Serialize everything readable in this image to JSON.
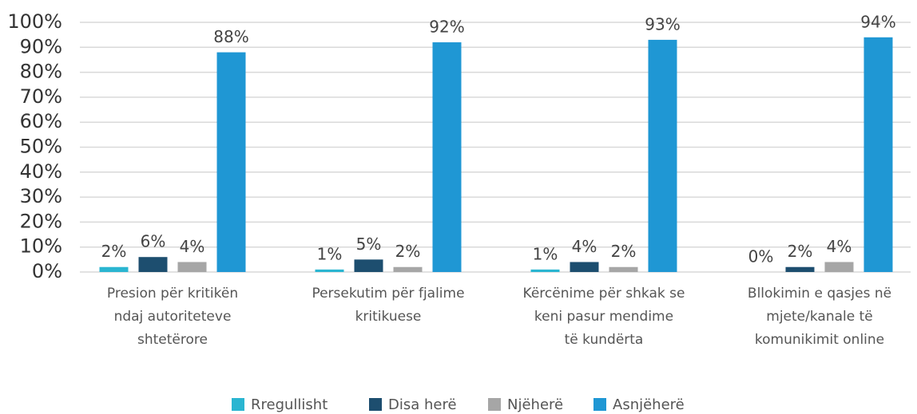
{
  "chart_data": {
    "type": "bar",
    "categories": [
      [
        "Presion për kritikën",
        "ndaj autoriteteve",
        "shtetërore"
      ],
      [
        "Persekutim për fjalime",
        "kritikuese"
      ],
      [
        "Kërcënime për shkak se",
        "keni pasur mendime",
        "të kundërta"
      ],
      [
        "Bllokimin e qasjes në",
        "mjete/kanale të",
        "komunikimit online"
      ]
    ],
    "series": [
      {
        "name": "Rregullisht",
        "color": "#2ab5d1",
        "values": [
          2,
          1,
          1,
          0
        ],
        "value_labels": [
          "2%",
          "1%",
          "1%",
          "0%"
        ]
      },
      {
        "name": "Disa herë",
        "color": "#1d4e6f",
        "values": [
          6,
          5,
          4,
          2
        ],
        "value_labels": [
          "6%",
          "5%",
          "4%",
          "2%"
        ]
      },
      {
        "name": "Njëherë",
        "color": "#a6a6a6",
        "values": [
          4,
          2,
          2,
          4
        ],
        "value_labels": [
          "4%",
          "2%",
          "2%",
          "4%"
        ]
      },
      {
        "name": "Asnjëherë",
        "color": "#1f97d4",
        "values": [
          88,
          92,
          93,
          94
        ],
        "value_labels": [
          "88%",
          "92%",
          "93%",
          "94%"
        ]
      }
    ],
    "ylim": [
      0,
      100
    ],
    "yticks": [
      {
        "value": 0,
        "label": "0%"
      },
      {
        "value": 10,
        "label": "10%"
      },
      {
        "value": 20,
        "label": "20%"
      },
      {
        "value": 30,
        "label": "30%"
      },
      {
        "value": 40,
        "label": "40%"
      },
      {
        "value": 50,
        "label": "50%"
      },
      {
        "value": 60,
        "label": "60%"
      },
      {
        "value": 70,
        "label": "70%"
      },
      {
        "value": 80,
        "label": "80%"
      },
      {
        "value": 90,
        "label": "90%"
      },
      {
        "value": 100,
        "label": "100%"
      }
    ],
    "grid": true,
    "legend": "bottom"
  }
}
